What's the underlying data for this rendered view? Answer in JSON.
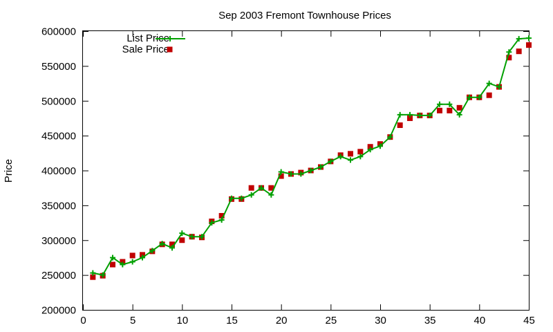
{
  "chart_data": {
    "type": "line",
    "title": "Sep 2003 Fremont Townhouse Prices",
    "xlabel": "",
    "ylabel": "Price",
    "xlim": [
      0,
      45
    ],
    "ylim": [
      200000,
      600000
    ],
    "x_ticks": [
      "0",
      "5",
      "10",
      "15",
      "20",
      "25",
      "30",
      "35",
      "40",
      "45"
    ],
    "y_ticks": [
      "200000",
      "250000",
      "300000",
      "350000",
      "400000",
      "450000",
      "500000",
      "550000",
      "600000"
    ],
    "grid": false,
    "legend_position": "top-left",
    "x": [
      1,
      2,
      3,
      4,
      5,
      6,
      7,
      8,
      9,
      10,
      11,
      12,
      13,
      14,
      15,
      16,
      17,
      18,
      19,
      20,
      21,
      22,
      23,
      24,
      25,
      26,
      27,
      28,
      29,
      30,
      31,
      32,
      33,
      34,
      35,
      36,
      37,
      38,
      39,
      40,
      41,
      42,
      43,
      44,
      45
    ],
    "series": [
      {
        "name": "List Price",
        "style": "line-plus",
        "color": "#00a000",
        "values": [
          253000,
          250000,
          275000,
          265000,
          269000,
          275000,
          285000,
          295000,
          289000,
          310000,
          305000,
          305000,
          325000,
          329000,
          360000,
          360000,
          365000,
          375000,
          365000,
          398000,
          395000,
          395000,
          400000,
          405000,
          413000,
          420000,
          415000,
          420000,
          430000,
          435000,
          448000,
          480000,
          480000,
          479000,
          479000,
          495000,
          495000,
          480000,
          505000,
          505000,
          525000,
          520000,
          570000,
          589000,
          590000
        ]
      },
      {
        "name": "Sale Price",
        "style": "square",
        "color": "#c00000",
        "values": [
          247000,
          249000,
          265000,
          269000,
          278000,
          279000,
          284000,
          294000,
          294000,
          300000,
          305000,
          304000,
          327000,
          335000,
          359000,
          359000,
          375000,
          375000,
          375000,
          392000,
          395000,
          397000,
          400000,
          405000,
          413000,
          422000,
          424000,
          427000,
          434000,
          438000,
          448000,
          465000,
          475000,
          479000,
          479000,
          486000,
          486000,
          490000,
          505000,
          505000,
          508000,
          520000,
          562000,
          571000,
          580000
        ]
      }
    ]
  }
}
